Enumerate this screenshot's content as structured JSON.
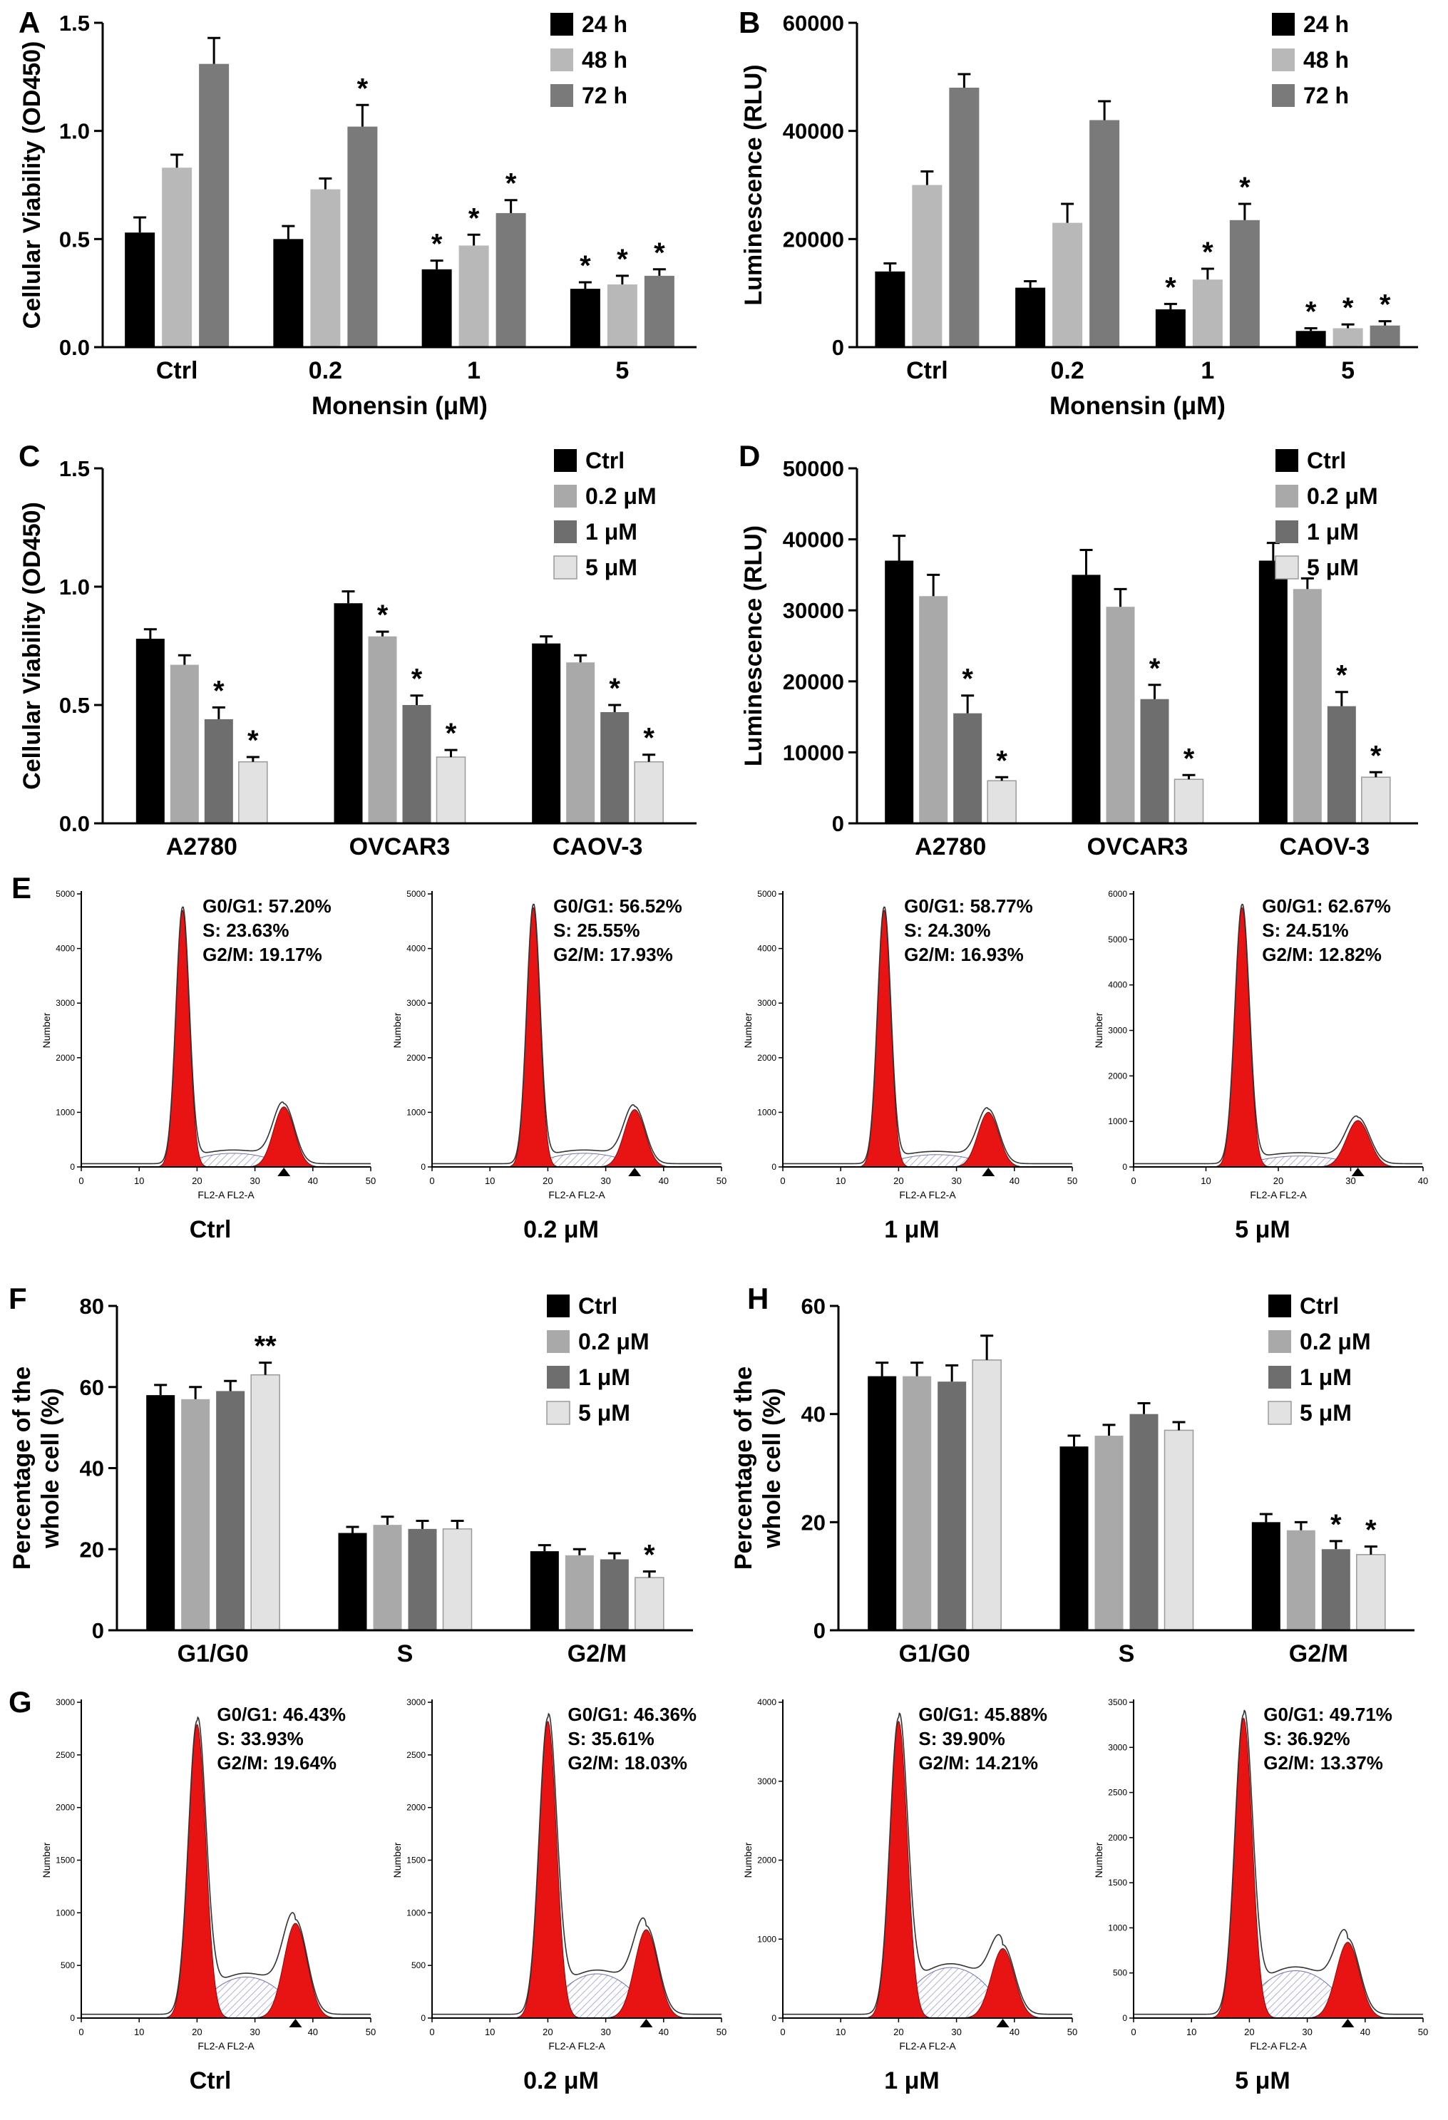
{
  "figure": {
    "background": "#ffffff"
  },
  "chart_data": [
    {
      "id": "A",
      "panel_label": "A",
      "type": "bar",
      "title": "",
      "ylabel": "Cellular Viability (OD450)",
      "xlabel": "Monensin (μM)",
      "ylim": [
        0,
        1.5
      ],
      "yticks": [
        0,
        0.5,
        1.0,
        1.5
      ],
      "ytick_labels": [
        "0.0",
        "0.5",
        "1.0",
        "1.5"
      ],
      "categories": [
        "Ctrl",
        "0.2",
        "1",
        "5"
      ],
      "legend_position": "top-right",
      "series": [
        {
          "name": "24 h",
          "color": "#000000",
          "values": [
            0.53,
            0.5,
            0.36,
            0.27
          ],
          "errors": [
            0.07,
            0.06,
            0.04,
            0.03
          ],
          "sig": [
            "",
            "",
            "*",
            "*"
          ]
        },
        {
          "name": "48 h",
          "color": "#b8b8b8",
          "values": [
            0.83,
            0.73,
            0.47,
            0.29
          ],
          "errors": [
            0.06,
            0.05,
            0.05,
            0.04
          ],
          "sig": [
            "",
            "",
            "*",
            "*"
          ]
        },
        {
          "name": "72 h",
          "color": "#7a7a7a",
          "values": [
            1.31,
            1.02,
            0.62,
            0.33
          ],
          "errors": [
            0.12,
            0.1,
            0.06,
            0.03
          ],
          "sig": [
            "",
            "*",
            "*",
            "*"
          ]
        }
      ]
    },
    {
      "id": "B",
      "panel_label": "B",
      "type": "bar",
      "title": "",
      "ylabel": "Luminescence (RLU)",
      "xlabel": "Monensin (μM)",
      "ylim": [
        0,
        60000
      ],
      "yticks": [
        0,
        20000,
        40000,
        60000
      ],
      "ytick_labels": [
        "0",
        "20000",
        "40000",
        "60000"
      ],
      "categories": [
        "Ctrl",
        "0.2",
        "1",
        "5"
      ],
      "legend_position": "top-right",
      "series": [
        {
          "name": "24 h",
          "color": "#000000",
          "values": [
            14000,
            11000,
            7000,
            3000
          ],
          "errors": [
            1500,
            1200,
            1000,
            500
          ],
          "sig": [
            "",
            "",
            "*",
            "*"
          ]
        },
        {
          "name": "48 h",
          "color": "#b8b8b8",
          "values": [
            30000,
            23000,
            12500,
            3500
          ],
          "errors": [
            2500,
            3500,
            2000,
            700
          ],
          "sig": [
            "",
            "",
            "*",
            "*"
          ]
        },
        {
          "name": "72 h",
          "color": "#7a7a7a",
          "values": [
            48000,
            42000,
            23500,
            4000
          ],
          "errors": [
            2500,
            3500,
            3000,
            800
          ],
          "sig": [
            "",
            "",
            "*",
            "*"
          ]
        }
      ]
    },
    {
      "id": "C",
      "panel_label": "C",
      "type": "bar",
      "title": "",
      "ylabel": "Cellular Viability (OD450)",
      "xlabel": "",
      "ylim": [
        0,
        1.5
      ],
      "yticks": [
        0,
        0.5,
        1.0,
        1.5
      ],
      "ytick_labels": [
        "0.0",
        "0.5",
        "1.0",
        "1.5"
      ],
      "categories": [
        "A2780",
        "OVCAR3",
        "CAOV-3"
      ],
      "legend_position": "top-right",
      "series": [
        {
          "name": "Ctrl",
          "color": "#000000",
          "values": [
            0.78,
            0.93,
            0.76
          ],
          "errors": [
            0.04,
            0.05,
            0.03
          ],
          "sig": [
            "",
            "",
            ""
          ]
        },
        {
          "name": "0.2 μM",
          "color": "#a9a9a9",
          "values": [
            0.67,
            0.79,
            0.68
          ],
          "errors": [
            0.04,
            0.02,
            0.03
          ],
          "sig": [
            "",
            "*",
            ""
          ]
        },
        {
          "name": "1 μM",
          "color": "#6e6e6e",
          "values": [
            0.44,
            0.5,
            0.47
          ],
          "errors": [
            0.05,
            0.04,
            0.03
          ],
          "sig": [
            "*",
            "*",
            "*"
          ]
        },
        {
          "name": "5 μM",
          "color": "#e2e2e2",
          "stroke": "#9a9a9a",
          "values": [
            0.26,
            0.28,
            0.26
          ],
          "errors": [
            0.02,
            0.03,
            0.03
          ],
          "sig": [
            "*",
            "*",
            "*"
          ]
        }
      ]
    },
    {
      "id": "D",
      "panel_label": "D",
      "type": "bar",
      "title": "",
      "ylabel": "Luminescence (RLU)",
      "xlabel": "",
      "ylim": [
        0,
        50000
      ],
      "yticks": [
        0,
        10000,
        20000,
        30000,
        40000,
        50000
      ],
      "ytick_labels": [
        "0",
        "10000",
        "20000",
        "30000",
        "40000",
        "50000"
      ],
      "categories": [
        "A2780",
        "OVCAR3",
        "CAOV-3"
      ],
      "legend_position": "top-right",
      "series": [
        {
          "name": "Ctrl",
          "color": "#000000",
          "values": [
            37000,
            35000,
            37000
          ],
          "errors": [
            3500,
            3500,
            2500
          ],
          "sig": [
            "",
            "",
            ""
          ]
        },
        {
          "name": "0.2 μM",
          "color": "#a9a9a9",
          "values": [
            32000,
            30500,
            33000
          ],
          "errors": [
            3000,
            2500,
            1500
          ],
          "sig": [
            "",
            "",
            ""
          ]
        },
        {
          "name": "1 μM",
          "color": "#6e6e6e",
          "values": [
            15500,
            17500,
            16500
          ],
          "errors": [
            2500,
            2000,
            2000
          ],
          "sig": [
            "*",
            "*",
            "*"
          ]
        },
        {
          "name": "5 μM",
          "color": "#e2e2e2",
          "stroke": "#9a9a9a",
          "values": [
            6000,
            6200,
            6500
          ],
          "errors": [
            500,
            600,
            700
          ],
          "sig": [
            "*",
            "*",
            "*"
          ]
        }
      ]
    },
    {
      "id": "E",
      "panel_label": "E",
      "type": "flow-histograms",
      "plots": [
        {
          "caption": "Ctrl",
          "ylabel": "Number",
          "xlabel": "FL2-A FL2-A",
          "stats": [
            "G0/G1: 57.20%",
            "S: 23.63%",
            "G2/M: 19.17%"
          ],
          "yticks": [
            "0",
            "1000",
            "2000",
            "3000",
            "4000",
            "5000"
          ],
          "xticks": [
            0,
            10,
            20,
            30,
            40,
            50
          ],
          "shape": {
            "g1c": 17.5,
            "g1s": 1.15,
            "g1h": 0.94,
            "g2c": 35,
            "g2s": 1.8,
            "g2h": 0.22,
            "sh": 0.05
          }
        },
        {
          "caption": "0.2 μM",
          "ylabel": "Number",
          "xlabel": "FL2-A FL2-A",
          "stats": [
            "G0/G1: 56.52%",
            "S: 25.55%",
            "G2/M: 17.93%"
          ],
          "yticks": [
            "0",
            "1000",
            "2000",
            "3000",
            "4000",
            "5000"
          ],
          "xticks": [
            0,
            10,
            20,
            30,
            40,
            50
          ],
          "shape": {
            "g1c": 17.5,
            "g1s": 1.15,
            "g1h": 0.95,
            "g2c": 35,
            "g2s": 1.8,
            "g2h": 0.21,
            "sh": 0.05
          }
        },
        {
          "caption": "1 μM",
          "ylabel": "Number",
          "xlabel": "FL2-A FL2-A",
          "stats": [
            "G0/G1: 58.77%",
            "S: 24.30%",
            "G2/M: 16.93%"
          ],
          "yticks": [
            "0",
            "1000",
            "2000",
            "3000",
            "4000",
            "5000"
          ],
          "xticks": [
            0,
            10,
            20,
            30,
            40,
            50
          ],
          "shape": {
            "g1c": 17.5,
            "g1s": 1.15,
            "g1h": 0.94,
            "g2c": 35.5,
            "g2s": 1.8,
            "g2h": 0.2,
            "sh": 0.045
          }
        },
        {
          "caption": "5 μM",
          "ylabel": "Number",
          "xlabel": "FL2-A FL2-A",
          "stats": [
            "G0/G1: 62.67%",
            "S: 24.51%",
            "G2/M: 12.82%"
          ],
          "yticks": [
            "0",
            "1000",
            "2000",
            "3000",
            "4000",
            "5000",
            "6000"
          ],
          "xticks": [
            0,
            10,
            20,
            30,
            40
          ],
          "shape": {
            "g1c": 15,
            "g1s": 1.0,
            "g1h": 0.95,
            "g2c": 31,
            "g2s": 1.6,
            "g2h": 0.17,
            "sh": 0.04
          }
        }
      ]
    },
    {
      "id": "F",
      "panel_label": "F",
      "type": "bar",
      "title": "",
      "ylabel": "Percentage of the whole cell (%)",
      "ylabel_lines": [
        "Percentage of the",
        "whole cell (%)"
      ],
      "xlabel": "",
      "ylim": [
        0,
        80
      ],
      "yticks": [
        0,
        20,
        40,
        60,
        80
      ],
      "ytick_labels": [
        "0",
        "20",
        "40",
        "60",
        "80"
      ],
      "categories": [
        "G1/G0",
        "S",
        "G2/M"
      ],
      "legend_position": "top-right",
      "series": [
        {
          "name": "Ctrl",
          "color": "#000000",
          "values": [
            58,
            24,
            19.5
          ],
          "errors": [
            2.5,
            1.5,
            1.5
          ],
          "sig": [
            "",
            "",
            ""
          ]
        },
        {
          "name": "0.2 μM",
          "color": "#a9a9a9",
          "values": [
            57,
            26,
            18.5
          ],
          "errors": [
            3,
            2,
            1.5
          ],
          "sig": [
            "",
            "",
            ""
          ]
        },
        {
          "name": "1 μM",
          "color": "#6e6e6e",
          "values": [
            59,
            25,
            17.5
          ],
          "errors": [
            2.5,
            2,
            1.5
          ],
          "sig": [
            "",
            "",
            ""
          ]
        },
        {
          "name": "5 μM",
          "color": "#e2e2e2",
          "stroke": "#9a9a9a",
          "values": [
            63,
            25,
            13
          ],
          "errors": [
            3,
            2,
            1.5
          ],
          "sig": [
            "**",
            "",
            "*"
          ]
        }
      ]
    },
    {
      "id": "H",
      "panel_label": "H",
      "type": "bar",
      "title": "",
      "ylabel": "Percentage of the whole cell (%)",
      "ylabel_lines": [
        "Percentage of the",
        "whole cell (%)"
      ],
      "xlabel": "",
      "ylim": [
        0,
        60
      ],
      "yticks": [
        0,
        20,
        40,
        60
      ],
      "ytick_labels": [
        "0",
        "20",
        "40",
        "60"
      ],
      "categories": [
        "G1/G0",
        "S",
        "G2/M"
      ],
      "legend_position": "top-right",
      "series": [
        {
          "name": "Ctrl",
          "color": "#000000",
          "values": [
            47,
            34,
            20
          ],
          "errors": [
            2.5,
            2,
            1.5
          ],
          "sig": [
            "",
            "",
            ""
          ]
        },
        {
          "name": "0.2 μM",
          "color": "#a9a9a9",
          "values": [
            47,
            36,
            18.5
          ],
          "errors": [
            2.5,
            2,
            1.5
          ],
          "sig": [
            "",
            "",
            ""
          ]
        },
        {
          "name": "1 μM",
          "color": "#6e6e6e",
          "values": [
            46,
            40,
            15
          ],
          "errors": [
            3,
            2,
            1.5
          ],
          "sig": [
            "",
            "",
            "*"
          ]
        },
        {
          "name": "5 μM",
          "color": "#e2e2e2",
          "stroke": "#9a9a9a",
          "values": [
            50,
            37,
            14
          ],
          "errors": [
            4.5,
            1.5,
            1.5
          ],
          "sig": [
            "",
            "",
            "*"
          ]
        }
      ]
    },
    {
      "id": "G",
      "panel_label": "G",
      "type": "flow-histograms",
      "plots": [
        {
          "caption": "Ctrl",
          "ylabel": "Number",
          "xlabel": "FL2-A FL2-A",
          "stats": [
            "G0/G1: 46.43%",
            "S: 33.93%",
            "G2/M: 19.64%"
          ],
          "yticks": [
            "0",
            "500",
            "1000",
            "1500",
            "2000",
            "2500",
            "3000"
          ],
          "xticks": [
            0,
            10,
            20,
            30,
            40,
            50
          ],
          "shape": {
            "g1c": 20,
            "g1s": 1.5,
            "g1h": 0.93,
            "g2c": 37,
            "g2s": 2.0,
            "g2h": 0.3,
            "sh": 0.13
          }
        },
        {
          "caption": "0.2 μM",
          "ylabel": "Number",
          "xlabel": "FL2-A FL2-A",
          "stats": [
            "G0/G1: 46.36%",
            "S: 35.61%",
            "G2/M: 18.03%"
          ],
          "yticks": [
            "0",
            "500",
            "1000",
            "1500",
            "2000",
            "2500",
            "3000"
          ],
          "xticks": [
            0,
            10,
            20,
            30,
            40,
            50
          ],
          "shape": {
            "g1c": 20,
            "g1s": 1.5,
            "g1h": 0.94,
            "g2c": 37,
            "g2s": 2.0,
            "g2h": 0.28,
            "sh": 0.14
          }
        },
        {
          "caption": "1 μM",
          "ylabel": "Number",
          "xlabel": "FL2-A FL2-A",
          "stats": [
            "G0/G1: 45.88%",
            "S: 39.90%",
            "G2/M: 14.21%"
          ],
          "yticks": [
            "0",
            "1000",
            "2000",
            "3000",
            "4000"
          ],
          "xticks": [
            0,
            10,
            20,
            30,
            40,
            50
          ],
          "shape": {
            "g1c": 20,
            "g1s": 1.5,
            "g1h": 0.94,
            "g2c": 38,
            "g2s": 2.0,
            "g2h": 0.22,
            "sh": 0.16
          }
        },
        {
          "caption": "5 μM",
          "ylabel": "Number",
          "xlabel": "FL2-A FL2-A",
          "stats": [
            "G0/G1: 49.71%",
            "S: 36.92%",
            "G2/M: 13.37%"
          ],
          "yticks": [
            "0",
            "500",
            "1000",
            "1500",
            "2000",
            "2500",
            "3000",
            "3500"
          ],
          "xticks": [
            0,
            10,
            20,
            30,
            40,
            50
          ],
          "shape": {
            "g1c": 19,
            "g1s": 1.5,
            "g1h": 0.95,
            "g2c": 37,
            "g2s": 2.0,
            "g2h": 0.24,
            "sh": 0.15
          }
        }
      ]
    }
  ]
}
